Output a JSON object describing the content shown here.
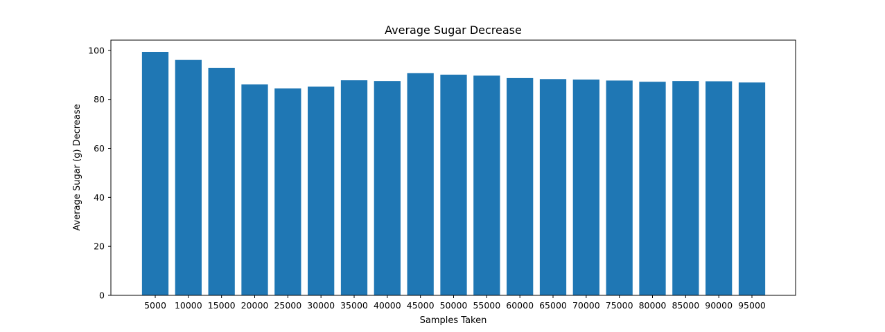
{
  "chart_data": {
    "type": "bar",
    "title": "Average Sugar Decrease",
    "xlabel": "Samples Taken",
    "ylabel": "Average Sugar (g) Decrease",
    "categories": [
      "5000",
      "10000",
      "15000",
      "20000",
      "25000",
      "30000",
      "35000",
      "40000",
      "45000",
      "50000",
      "55000",
      "60000",
      "65000",
      "70000",
      "75000",
      "80000",
      "85000",
      "90000",
      "95000"
    ],
    "values": [
      99.4,
      96.1,
      92.9,
      86.1,
      84.5,
      85.2,
      87.8,
      87.5,
      90.7,
      90.1,
      89.7,
      88.7,
      88.3,
      88.1,
      87.7,
      87.2,
      87.5,
      87.4,
      86.9
    ],
    "ylim": [
      0,
      104.2
    ],
    "yticks": [
      0,
      20,
      40,
      60,
      80,
      100
    ],
    "bar_color": "#1f77b4",
    "grid": false,
    "legend": "none"
  }
}
